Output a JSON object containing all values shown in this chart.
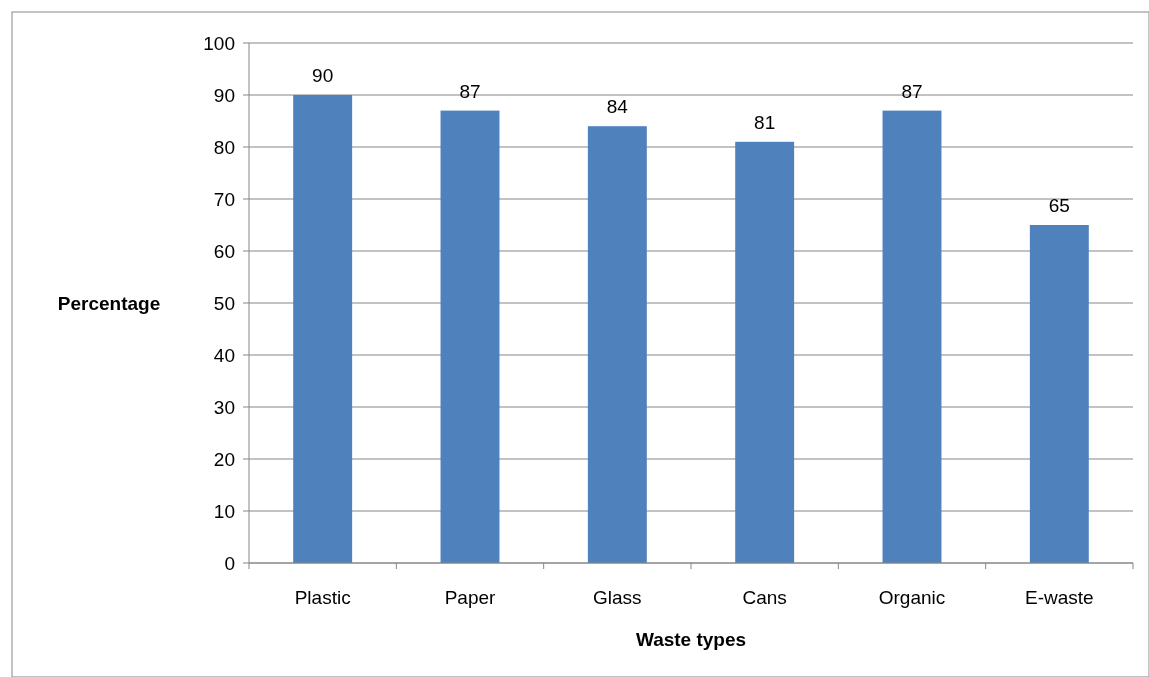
{
  "chart_data": {
    "type": "bar",
    "xlabel": "Waste types",
    "ylabel": "Percentage",
    "categories": [
      "Plastic",
      "Paper",
      "Glass",
      "Cans",
      "Organic",
      "E-waste"
    ],
    "values": [
      90,
      87,
      84,
      81,
      87,
      65
    ],
    "color": "#4f81bd",
    "ylim": [
      0,
      100
    ],
    "yticks": [
      0,
      10,
      20,
      30,
      40,
      50,
      60,
      70,
      80,
      90,
      100
    ],
    "grid": "y",
    "data_labels": true
  }
}
